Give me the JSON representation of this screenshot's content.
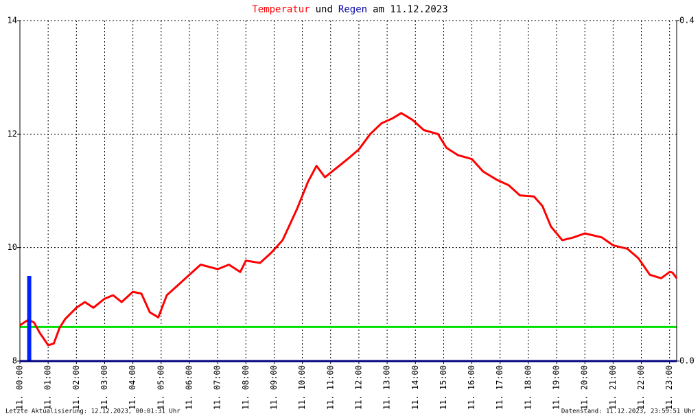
{
  "chart_data": {
    "type": "line",
    "title_parts": [
      "Temperatur",
      "und",
      "Regen",
      "am 11.12.2023"
    ],
    "title_colors": [
      "#ff0000",
      "#000000",
      "#0000aa",
      "#000000"
    ],
    "footer_left": "Letzte Aktualisierung: 12.12.2023, 00:01:31 Uhr",
    "footer_right": "Datenstand: 11.12.2023, 23:59:51 Uhr",
    "xlim": [
      0,
      23.25
    ],
    "xticks": [
      {
        "value": 0,
        "label": "11. 00:00"
      },
      {
        "value": 1,
        "label": "11. 01:00"
      },
      {
        "value": 2,
        "label": "11. 02:00"
      },
      {
        "value": 3,
        "label": "11. 03:00"
      },
      {
        "value": 4,
        "label": "11. 04:00"
      },
      {
        "value": 5,
        "label": "11. 05:00"
      },
      {
        "value": 6,
        "label": "11. 06:00"
      },
      {
        "value": 7,
        "label": "11. 07:00"
      },
      {
        "value": 8,
        "label": "11. 08:00"
      },
      {
        "value": 9,
        "label": "11. 09:00"
      },
      {
        "value": 10,
        "label": "11. 10:00"
      },
      {
        "value": 11,
        "label": "11. 11:00"
      },
      {
        "value": 12,
        "label": "11. 12:00"
      },
      {
        "value": 13,
        "label": "11. 13:00"
      },
      {
        "value": 14,
        "label": "11. 14:00"
      },
      {
        "value": 15,
        "label": "11. 15:00"
      },
      {
        "value": 16,
        "label": "11. 16:00"
      },
      {
        "value": 17,
        "label": "11. 17:00"
      },
      {
        "value": 18,
        "label": "11. 18:00"
      },
      {
        "value": 19,
        "label": "11. 19:00"
      },
      {
        "value": 20,
        "label": "11. 20:00"
      },
      {
        "value": 21,
        "label": "11. 21:00"
      },
      {
        "value": 22,
        "label": "11. 22:00"
      },
      {
        "value": 23,
        "label": "11. 23:00"
      }
    ],
    "ylim": [
      8,
      14
    ],
    "yticks": [
      8,
      10,
      12,
      14
    ],
    "y2lim": [
      0,
      0.4
    ],
    "y2ticks": [
      {
        "value": 0,
        "label": "0.0"
      },
      {
        "value": 0.4,
        "label": "0.4"
      }
    ],
    "grid": true,
    "reference_line": {
      "value": 8.6,
      "color": "#00e000"
    },
    "series": [
      {
        "name": "Temperatur",
        "color": "#ff0000",
        "x": [
          0.0,
          0.3,
          0.5,
          0.7,
          1.0,
          1.2,
          1.4,
          1.6,
          2.0,
          2.3,
          2.6,
          3.0,
          3.3,
          3.6,
          4.0,
          4.3,
          4.6,
          4.9,
          5.2,
          5.6,
          6.0,
          6.4,
          7.0,
          7.4,
          7.8,
          8.0,
          8.5,
          8.9,
          9.3,
          9.8,
          10.2,
          10.5,
          10.8,
          11.2,
          11.6,
          12.0,
          12.4,
          12.8,
          13.2,
          13.5,
          13.9,
          14.3,
          14.8,
          15.1,
          15.5,
          16.0,
          16.4,
          16.9,
          17.3,
          17.7,
          18.2,
          18.5,
          18.8,
          19.2,
          19.6,
          20.0,
          20.6,
          21.0,
          21.5,
          21.9,
          22.3,
          22.7,
          23.0,
          23.1,
          23.25
        ],
        "values": [
          8.63,
          8.73,
          8.68,
          8.5,
          8.28,
          8.31,
          8.58,
          8.74,
          8.94,
          9.04,
          8.94,
          9.1,
          9.16,
          9.04,
          9.22,
          9.19,
          8.86,
          8.77,
          9.16,
          9.34,
          9.52,
          9.7,
          9.62,
          9.7,
          9.57,
          9.77,
          9.73,
          9.91,
          10.13,
          10.67,
          11.16,
          11.44,
          11.24,
          11.4,
          11.56,
          11.73,
          12.0,
          12.19,
          12.28,
          12.37,
          12.25,
          12.07,
          12.0,
          11.76,
          11.63,
          11.56,
          11.34,
          11.19,
          11.1,
          10.92,
          10.9,
          10.73,
          10.37,
          10.13,
          10.18,
          10.25,
          10.18,
          10.04,
          9.98,
          9.81,
          9.52,
          9.46,
          9.57,
          9.56,
          9.46
        ]
      },
      {
        "name": "Regen",
        "color": "#0022ff",
        "axis": "y2",
        "type": "bar",
        "x": [
          0.33
        ],
        "values": [
          0.1
        ]
      }
    ]
  }
}
